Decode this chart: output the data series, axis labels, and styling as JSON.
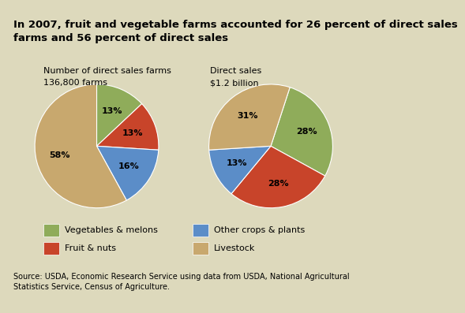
{
  "title": "In 2007, fruit and vegetable farms accounted for 26 percent of direct sales\nfarms and 56 percent of direct sales",
  "title_fontsize": 9.5,
  "bg_color": "#ddd9bc",
  "title_bg_color": "#c8c49e",
  "footer_bg_color": "#c8c49e",
  "source_text": "Source: USDA, Economic Research Service using data from USDA, National Agricultural\nStatistics Service, Census of Agriculture.",
  "pie1_title_line1": "Number of direct sales farms",
  "pie1_title_line2": "136,800 farms",
  "pie2_title_line1": "Direct sales",
  "pie2_title_line2": "$1.2 billion",
  "pie1_values": [
    13,
    13,
    16,
    58
  ],
  "pie2_values": [
    28,
    28,
    13,
    31
  ],
  "pie1_labels": [
    "13%",
    "13%",
    "16%",
    "58%"
  ],
  "pie2_labels": [
    "28%",
    "28%",
    "13%",
    "31%"
  ],
  "colors": [
    "#8fac5a",
    "#c8442a",
    "#5b8dc8",
    "#c8a86e"
  ],
  "legend_labels_col1": [
    "Vegetables & melons",
    "Fruit & nuts"
  ],
  "legend_labels_col2": [
    "Other crops & plants",
    "Livestock"
  ],
  "legend_colors_col1": [
    "#8fac5a",
    "#c8442a"
  ],
  "legend_colors_col2": [
    "#5b8dc8",
    "#c8a86e"
  ],
  "pie1_startangle": 90,
  "pie2_startangle": 72
}
